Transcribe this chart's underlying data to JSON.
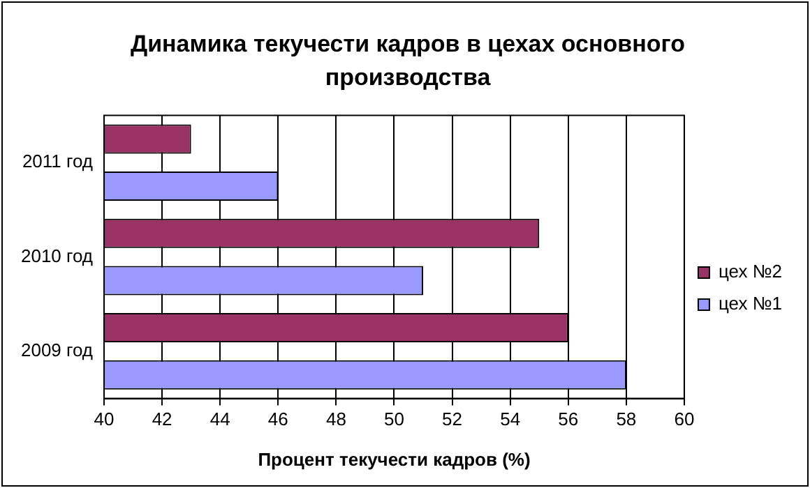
{
  "chart_data": {
    "type": "bar",
    "orientation": "horizontal",
    "title": "Динамика текучести кадров в цехах основного производства",
    "xlabel": "Процент текучести кадров (%)",
    "categories": [
      "2011 год",
      "2010 год",
      "2009 год"
    ],
    "series": [
      {
        "name": "цех №2",
        "color": "#993366",
        "values": [
          43,
          55,
          56
        ]
      },
      {
        "name": "цех №1",
        "color": "#9999ff",
        "values": [
          46,
          51,
          58
        ]
      }
    ],
    "xlim": [
      40,
      60
    ],
    "xticks": [
      40,
      42,
      44,
      46,
      48,
      50,
      52,
      54,
      56,
      58,
      60
    ],
    "grid": "x",
    "legend": "right"
  }
}
